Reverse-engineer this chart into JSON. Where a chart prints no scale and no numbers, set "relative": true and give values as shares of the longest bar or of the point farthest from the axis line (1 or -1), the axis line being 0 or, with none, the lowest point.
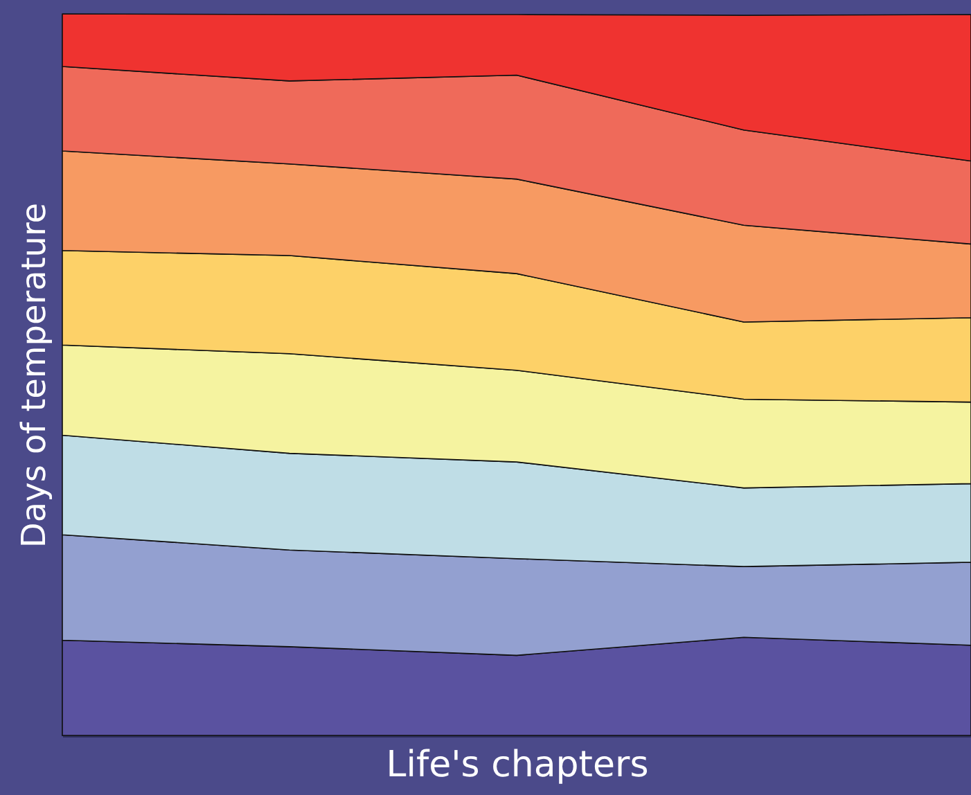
{
  "chart_data": {
    "type": "area",
    "stacked": true,
    "relative": true,
    "xlabel": "Life's chapters",
    "ylabel": "Days of temperature",
    "categories": [
      null,
      null,
      null,
      null,
      null
    ],
    "tick_labels": false,
    "grid": false,
    "series": [
      {
        "color": "#5a52a0",
        "values": [
          0.132,
          0.123,
          0.111,
          0.136,
          0.125
        ]
      },
      {
        "color": "#93a0d0",
        "values": [
          0.146,
          0.134,
          0.134,
          0.098,
          0.115
        ]
      },
      {
        "color": "#bfdde6",
        "values": [
          0.138,
          0.134,
          0.134,
          0.109,
          0.109
        ]
      },
      {
        "color": "#f5f3a0",
        "values": [
          0.125,
          0.138,
          0.127,
          0.123,
          0.113
        ]
      },
      {
        "color": "#fdd168",
        "values": [
          0.131,
          0.136,
          0.134,
          0.107,
          0.117
        ]
      },
      {
        "color": "#f79a62",
        "values": [
          0.138,
          0.127,
          0.131,
          0.134,
          0.102
        ]
      },
      {
        "color": "#ef6a5a",
        "values": [
          0.117,
          0.115,
          0.144,
          0.132,
          0.115
        ]
      },
      {
        "color": "#ef3330",
        "values": [
          0.073,
          0.092,
          0.084,
          0.159,
          0.203
        ]
      }
    ]
  }
}
